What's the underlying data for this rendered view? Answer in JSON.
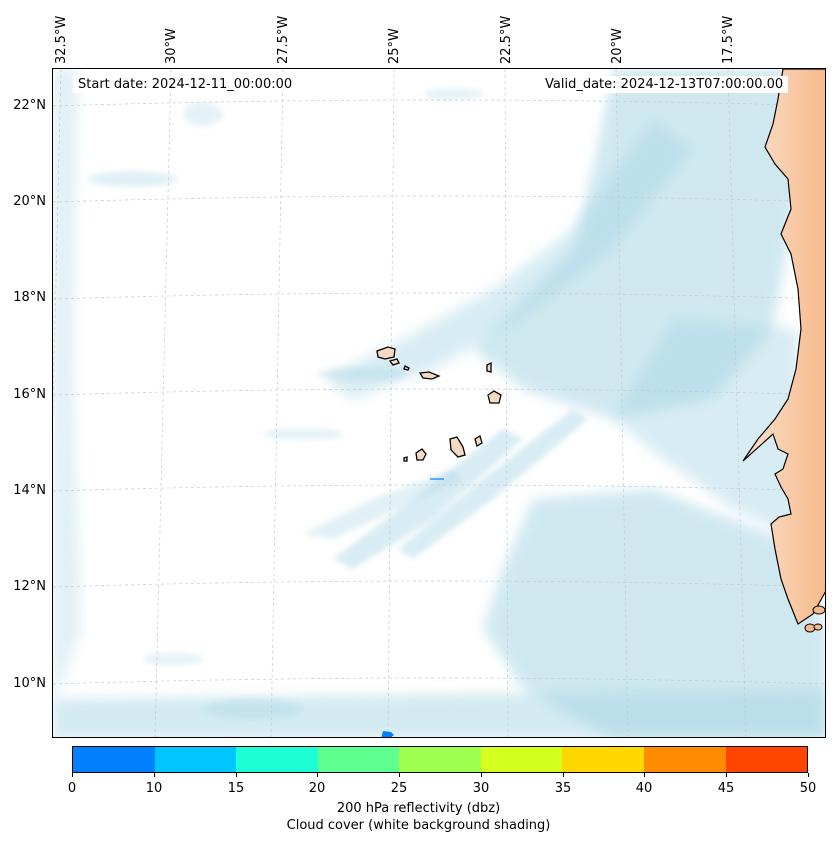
{
  "map": {
    "start_date": "Start date: 2024-12-11_00:00:00",
    "valid_date": "Valid_date: 2024-12-13T07:00:00.00",
    "lon_labels": [
      "32.5°W",
      "30°W",
      "27.5°W",
      "25°W",
      "22.5°W",
      "20°W",
      "17.5°W"
    ],
    "lat_labels": [
      "22°N",
      "20°N",
      "18°N",
      "16°N",
      "14°N",
      "12°N",
      "10°N"
    ],
    "islands": [
      "Santo Antão",
      "São Vicente",
      "Santa Luzia",
      "São Nicolau",
      "Sal",
      "Boa Vista",
      "Maio",
      "Santiago",
      "Fogo",
      "Brava"
    ],
    "coast": "West Africa (Mauritania, Senegal, Gambia, Guinea-Bissau)",
    "land_color": "#f6b98a",
    "cloud_color": "#a9d6e5"
  },
  "colorbar": {
    "colors": [
      "#007fff",
      "#00c5ff",
      "#1fffd5",
      "#5fff8f",
      "#9fff4f",
      "#d5ff1f",
      "#ffd700",
      "#ff8c00",
      "#ff4500"
    ],
    "ticks": [
      "0",
      "10",
      "15",
      "20",
      "25",
      "30",
      "35",
      "40",
      "45",
      "50"
    ],
    "label": "200 hPa reflectivity (dbz)",
    "sublabel": "Cloud cover (white background shading)"
  }
}
